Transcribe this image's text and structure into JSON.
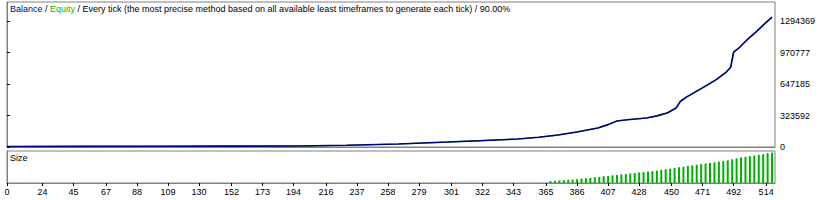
{
  "chart_data": [
    {
      "type": "line",
      "title": "Balance / Equity / Every tick (the most precise method based on all available least timeframes to generate each tick) / 90.00%",
      "x": [
        0,
        50,
        100,
        150,
        197,
        230,
        265,
        298,
        320,
        346,
        360,
        373,
        386,
        400,
        407,
        413,
        420,
        433,
        440,
        447,
        453,
        456,
        460,
        470,
        480,
        487,
        490,
        492,
        495,
        501,
        507,
        514,
        518
      ],
      "series": [
        {
          "name": "Equity",
          "color": "#00c000",
          "values": [
            5000,
            6000,
            7000,
            8500,
            10000,
            18000,
            31000,
            51000,
            65000,
            82000,
            100000,
            123000,
            155000,
            195000,
            230000,
            267000,
            280000,
            298000,
            320000,
            350000,
            400000,
            470000,
            513000,
            600000,
            690000,
            770000,
            820000,
            976000,
            1010000,
            1100000,
            1180000,
            1280000,
            1335000
          ]
        },
        {
          "name": "Balance",
          "color": "#000080",
          "values": [
            5000,
            6000,
            7000,
            8500,
            10000,
            18000,
            31000,
            51000,
            65000,
            82000,
            100000,
            123000,
            155000,
            195000,
            230000,
            267000,
            280000,
            298000,
            320000,
            350000,
            400000,
            470000,
            513000,
            600000,
            690000,
            770000,
            820000,
            976000,
            1010000,
            1100000,
            1180000,
            1280000,
            1335000
          ]
        }
      ],
      "xlim": [
        0,
        520
      ],
      "ylim": [
        0,
        1490000
      ],
      "yticks": [
        0,
        323592,
        647185,
        970777,
        1294369
      ],
      "tick_labels": "y",
      "grid": false
    },
    {
      "type": "bar",
      "title": "Size",
      "x": [
        368,
        371,
        374,
        377,
        380,
        383,
        386,
        389,
        392,
        395,
        398,
        401,
        404,
        407,
        410,
        413,
        416,
        419,
        422,
        425,
        428,
        431,
        434,
        437,
        440,
        443,
        446,
        449,
        452,
        455,
        458,
        461,
        464,
        467,
        470,
        473,
        476,
        479,
        482,
        485,
        488,
        491,
        494,
        497,
        500,
        503,
        506,
        509,
        512,
        515,
        518
      ],
      "values": [
        0.6,
        0.7,
        0.8,
        0.9,
        1.0,
        1.1,
        1.2,
        1.4,
        1.5,
        1.6,
        1.8,
        1.9,
        2.1,
        2.2,
        2.4,
        2.5,
        2.7,
        2.8,
        3.0,
        3.1,
        3.3,
        3.4,
        3.6,
        3.7,
        3.9,
        4.1,
        4.3,
        4.5,
        4.7,
        4.9,
        5.1,
        5.3,
        5.5,
        5.7,
        5.9,
        6.1,
        6.3,
        6.5,
        6.7,
        6.9,
        7.1,
        7.4,
        7.7,
        8.0,
        8.2,
        8.4,
        8.6,
        8.8,
        9.0,
        9.3,
        9.5
      ],
      "color": "#00b000",
      "xlim": [
        0,
        520
      ],
      "xticks": [
        0,
        24,
        45,
        67,
        88,
        109,
        130,
        152,
        173,
        194,
        216,
        237,
        258,
        279,
        301,
        322,
        343,
        365,
        386,
        407,
        428,
        450,
        471,
        492,
        514
      ],
      "ylim": [
        0,
        10
      ],
      "tick_labels": "x",
      "grid": false
    }
  ]
}
